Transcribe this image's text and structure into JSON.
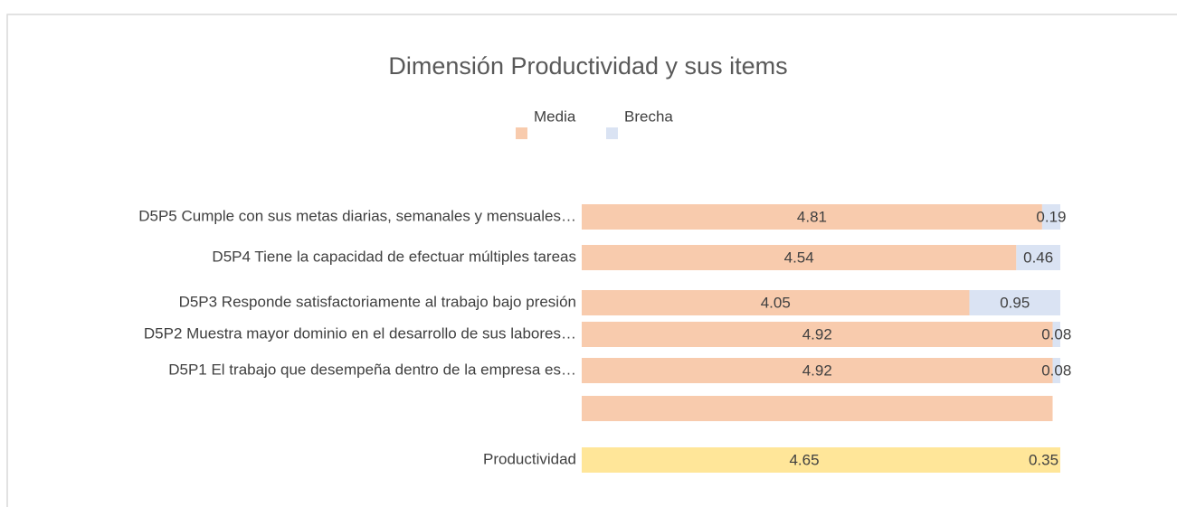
{
  "chart_data": {
    "type": "stacked-bar-horizontal",
    "title": "Dimensión Productividad y sus items",
    "categories": [
      "D5P5 Cumple con sus metas diarias, semanales y mensuales…",
      "D5P4 Tiene la capacidad de efectuar múltiples tareas",
      "D5P3 Responde satisfactoriamente al trabajo bajo presión",
      "D5P2 Muestra mayor dominio en el desarrollo de sus labores…",
      "D5P1 El trabajo que desempeña dentro de la empresa es…",
      null,
      "Productividad"
    ],
    "series": [
      {
        "name": "Media",
        "color": "#f8cbad",
        "values": [
          4.81,
          4.54,
          4.05,
          4.92,
          4.92,
          4.92,
          4.65
        ],
        "point_colors": [
          "#f8cbad",
          "#f8cbad",
          "#f8cbad",
          "#f8cbad",
          "#f8cbad",
          "#f8cbad",
          "#ffe699"
        ]
      },
      {
        "name": "Brecha",
        "color": "#dae3f3",
        "values": [
          0.19,
          0.46,
          0.95,
          0.08,
          0.08,
          null,
          0.35
        ],
        "point_colors": [
          "#dae3f3",
          "#dae3f3",
          "#dae3f3",
          "#dae3f3",
          "#dae3f3",
          "#dae3f3",
          "#ffe699"
        ]
      }
    ],
    "value_labels_shown": [
      [
        true,
        true,
        true,
        true,
        true,
        false,
        true
      ],
      [
        true,
        true,
        true,
        true,
        true,
        false,
        true
      ]
    ],
    "xlim": [
      0,
      5
    ],
    "legend": "top"
  }
}
